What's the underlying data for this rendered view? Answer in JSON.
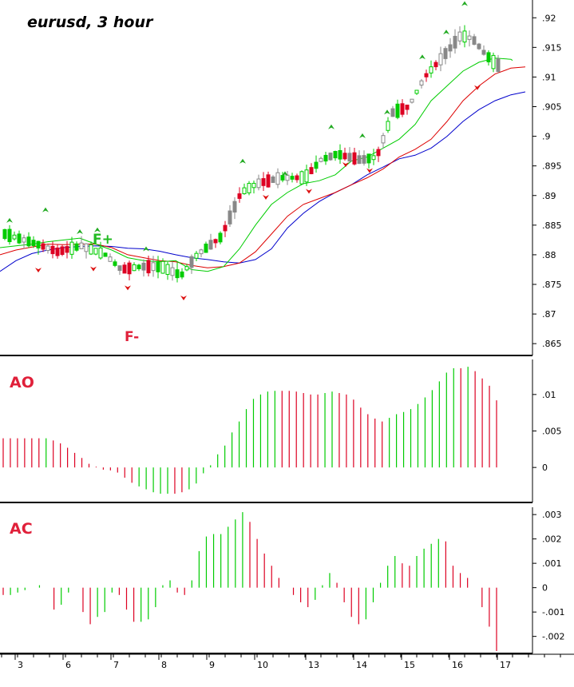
{
  "chart_data": [
    {
      "type": "candlestick",
      "title": "eurusd, 3 hour",
      "ylim": [
        0.863,
        0.923
      ],
      "y_ticks": [
        ".92",
        ".915",
        ".91",
        ".905",
        ".9",
        ".895",
        ".89",
        ".885",
        ".88",
        ".875",
        ".87",
        ".865"
      ],
      "y_tick_values": [
        0.92,
        0.915,
        0.91,
        0.905,
        0.9,
        0.895,
        0.89,
        0.885,
        0.88,
        0.875,
        0.87,
        0.865
      ],
      "annotations": [
        "F+",
        "F-"
      ],
      "colors": {
        "up": "#00cc00",
        "down": "#dd0022",
        "neutral": "#999999",
        "blue_line": "#0000cc",
        "red_line": "#dd0000",
        "green_line": "#00cc00"
      },
      "blue_line": [
        [
          0,
          0.8772
        ],
        [
          20,
          0.879
        ],
        [
          40,
          0.8802
        ],
        [
          60,
          0.8808
        ],
        [
          80,
          0.8812
        ],
        [
          100,
          0.8814
        ],
        [
          120,
          0.8815
        ],
        [
          140,
          0.8814
        ],
        [
          160,
          0.8811
        ],
        [
          180,
          0.881
        ],
        [
          200,
          0.8806
        ],
        [
          220,
          0.88
        ],
        [
          240,
          0.8795
        ],
        [
          260,
          0.8792
        ],
        [
          280,
          0.8788
        ],
        [
          300,
          0.8786
        ],
        [
          320,
          0.8792
        ],
        [
          340,
          0.881
        ],
        [
          360,
          0.8845
        ],
        [
          380,
          0.887
        ],
        [
          400,
          0.889
        ],
        [
          420,
          0.8905
        ],
        [
          440,
          0.8918
        ],
        [
          460,
          0.8935
        ],
        [
          480,
          0.8948
        ],
        [
          500,
          0.8962
        ],
        [
          520,
          0.8968
        ],
        [
          540,
          0.898
        ],
        [
          560,
          0.9
        ],
        [
          580,
          0.9025
        ],
        [
          600,
          0.9045
        ],
        [
          620,
          0.906
        ],
        [
          640,
          0.907
        ],
        [
          658,
          0.9075
        ]
      ],
      "red_line": [
        [
          0,
          0.88
        ],
        [
          20,
          0.8808
        ],
        [
          40,
          0.8813
        ],
        [
          60,
          0.8818
        ],
        [
          80,
          0.8817
        ],
        [
          100,
          0.8818
        ],
        [
          120,
          0.8818
        ],
        [
          140,
          0.8812
        ],
        [
          160,
          0.88
        ],
        [
          180,
          0.8795
        ],
        [
          200,
          0.879
        ],
        [
          220,
          0.8788
        ],
        [
          240,
          0.8782
        ],
        [
          260,
          0.8778
        ],
        [
          280,
          0.878
        ],
        [
          300,
          0.8786
        ],
        [
          320,
          0.8805
        ],
        [
          340,
          0.8835
        ],
        [
          360,
          0.8865
        ],
        [
          380,
          0.8885
        ],
        [
          400,
          0.8895
        ],
        [
          420,
          0.8905
        ],
        [
          440,
          0.8918
        ],
        [
          460,
          0.893
        ],
        [
          480,
          0.8945
        ],
        [
          500,
          0.8965
        ],
        [
          520,
          0.8978
        ],
        [
          540,
          0.8995
        ],
        [
          560,
          0.9025
        ],
        [
          580,
          0.906
        ],
        [
          600,
          0.9085
        ],
        [
          620,
          0.9105
        ],
        [
          640,
          0.9115
        ],
        [
          658,
          0.9117
        ]
      ],
      "green_line": [
        [
          0,
          0.8812
        ],
        [
          20,
          0.8815
        ],
        [
          40,
          0.8818
        ],
        [
          60,
          0.8822
        ],
        [
          80,
          0.8825
        ],
        [
          100,
          0.8828
        ],
        [
          120,
          0.8818
        ],
        [
          140,
          0.8808
        ],
        [
          160,
          0.8795
        ],
        [
          180,
          0.879
        ],
        [
          200,
          0.8788
        ],
        [
          220,
          0.879
        ],
        [
          240,
          0.8775
        ],
        [
          260,
          0.8772
        ],
        [
          280,
          0.878
        ],
        [
          300,
          0.881
        ],
        [
          320,
          0.885
        ],
        [
          340,
          0.8885
        ],
        [
          360,
          0.8905
        ],
        [
          380,
          0.892
        ],
        [
          400,
          0.8925
        ],
        [
          420,
          0.8935
        ],
        [
          440,
          0.8958
        ],
        [
          460,
          0.8965
        ],
        [
          480,
          0.898
        ],
        [
          500,
          0.8995
        ],
        [
          520,
          0.902
        ],
        [
          540,
          0.906
        ],
        [
          560,
          0.9085
        ],
        [
          580,
          0.911
        ],
        [
          600,
          0.9125
        ],
        [
          620,
          0.9132
        ],
        [
          640,
          0.913
        ],
        [
          642,
          0.9128
        ]
      ]
    },
    {
      "type": "bar",
      "title": "AO",
      "ylim": [
        -0.0048,
        0.0148
      ],
      "y_ticks": [
        ".01",
        ".005",
        "0"
      ],
      "y_tick_values": [
        0.01,
        0.005,
        0.0
      ],
      "values": [
        0.004,
        0.004,
        0.004,
        0.004,
        0.004,
        0.004,
        0.004,
        0.0037,
        0.0033,
        0.0027,
        0.002,
        0.0013,
        0.0005,
        0.0001,
        -0.0003,
        -0.0004,
        -0.0007,
        -0.0014,
        -0.0021,
        -0.0026,
        -0.003,
        -0.0034,
        -0.0036,
        -0.0036,
        -0.0036,
        -0.0034,
        -0.003,
        -0.0022,
        -0.0008,
        0.0003,
        0.0018,
        0.003,
        0.0048,
        0.0063,
        0.008,
        0.0094,
        0.01,
        0.0104,
        0.0105,
        0.0105,
        0.0105,
        0.0104,
        0.0102,
        0.01,
        0.01,
        0.0102,
        0.0104,
        0.0102,
        0.01,
        0.0093,
        0.0082,
        0.0073,
        0.0067,
        0.0063,
        0.0068,
        0.0073,
        0.0076,
        0.008,
        0.0087,
        0.0096,
        0.0106,
        0.0118,
        0.013,
        0.0136,
        0.0136,
        0.0138,
        0.0132,
        0.0122,
        0.0112,
        0.0092
      ],
      "colors": [
        "r",
        "r",
        "r",
        "r",
        "r",
        "r",
        "g",
        "r",
        "r",
        "r",
        "r",
        "r",
        "r",
        "r",
        "r",
        "r",
        "r",
        "r",
        "r",
        "g",
        "g",
        "g",
        "g",
        "g",
        "r",
        "r",
        "g",
        "g",
        "g",
        "g",
        "g",
        "g",
        "g",
        "g",
        "g",
        "g",
        "g",
        "g",
        "g",
        "r",
        "r",
        "r",
        "r",
        "r",
        "r",
        "g",
        "g",
        "r",
        "r",
        "r",
        "r",
        "r",
        "r",
        "r",
        "g",
        "g",
        "g",
        "g",
        "g",
        "g",
        "g",
        "g",
        "g",
        "g",
        "r",
        "g",
        "r",
        "r",
        "r",
        "r"
      ]
    },
    {
      "type": "bar",
      "title": "AC",
      "ylim": [
        -0.0027,
        0.0033
      ],
      "y_ticks": [
        ".003",
        ".002",
        ".001",
        "0",
        "-.001",
        "-.002"
      ],
      "y_tick_values": [
        0.003,
        0.002,
        0.001,
        0.0,
        -0.001,
        -0.002
      ],
      "values": [
        -0.0003,
        -0.0003,
        -0.0002,
        -0.0001,
        0.0,
        0.0001,
        0.0,
        -0.0009,
        -0.0007,
        -0.0002,
        0.0,
        -0.001,
        -0.0015,
        -0.0012,
        -0.001,
        -0.0002,
        -0.0003,
        -0.0009,
        -0.0014,
        -0.0014,
        -0.0013,
        -0.0008,
        0.0001,
        0.0003,
        -0.0002,
        -0.0003,
        0.0003,
        0.0015,
        0.0021,
        0.0022,
        0.0022,
        0.0025,
        0.0028,
        0.0031,
        0.0027,
        0.002,
        0.0014,
        0.0009,
        0.0004,
        0.0,
        -0.0003,
        -0.0006,
        -0.0008,
        -0.0005,
        0.0001,
        0.0006,
        0.0002,
        -0.0006,
        -0.0012,
        -0.0015,
        -0.0013,
        -0.0006,
        0.0002,
        0.0009,
        0.0013,
        0.001,
        0.0009,
        0.0013,
        0.0016,
        0.0018,
        0.002,
        0.0019,
        0.0009,
        0.0006,
        0.0004,
        0.0,
        -0.0008,
        -0.0016,
        -0.0026
      ],
      "colors": [
        "r",
        "g",
        "g",
        "g",
        "g",
        "g",
        "r",
        "r",
        "g",
        "g",
        "r",
        "r",
        "r",
        "g",
        "g",
        "g",
        "r",
        "r",
        "r",
        "g",
        "g",
        "g",
        "g",
        "g",
        "r",
        "r",
        "g",
        "g",
        "g",
        "g",
        "g",
        "g",
        "g",
        "g",
        "r",
        "r",
        "r",
        "r",
        "r",
        "r",
        "r",
        "r",
        "r",
        "g",
        "g",
        "g",
        "r",
        "r",
        "r",
        "r",
        "g",
        "g",
        "g",
        "g",
        "g",
        "r",
        "r",
        "g",
        "g",
        "g",
        "g",
        "r",
        "r",
        "r",
        "r",
        "r",
        "r",
        "r",
        "r"
      ]
    }
  ],
  "x_axis": {
    "labels": [
      "3",
      "6",
      "7",
      "8",
      "9",
      "10",
      "13",
      "14",
      "15",
      "16",
      "17"
    ]
  },
  "panels": {
    "price_label": "eurusd, 3 hour",
    "ao_label": "AO",
    "ac_label": "AC",
    "fractal_up_label": "F+",
    "fractal_down_label": "F-"
  }
}
